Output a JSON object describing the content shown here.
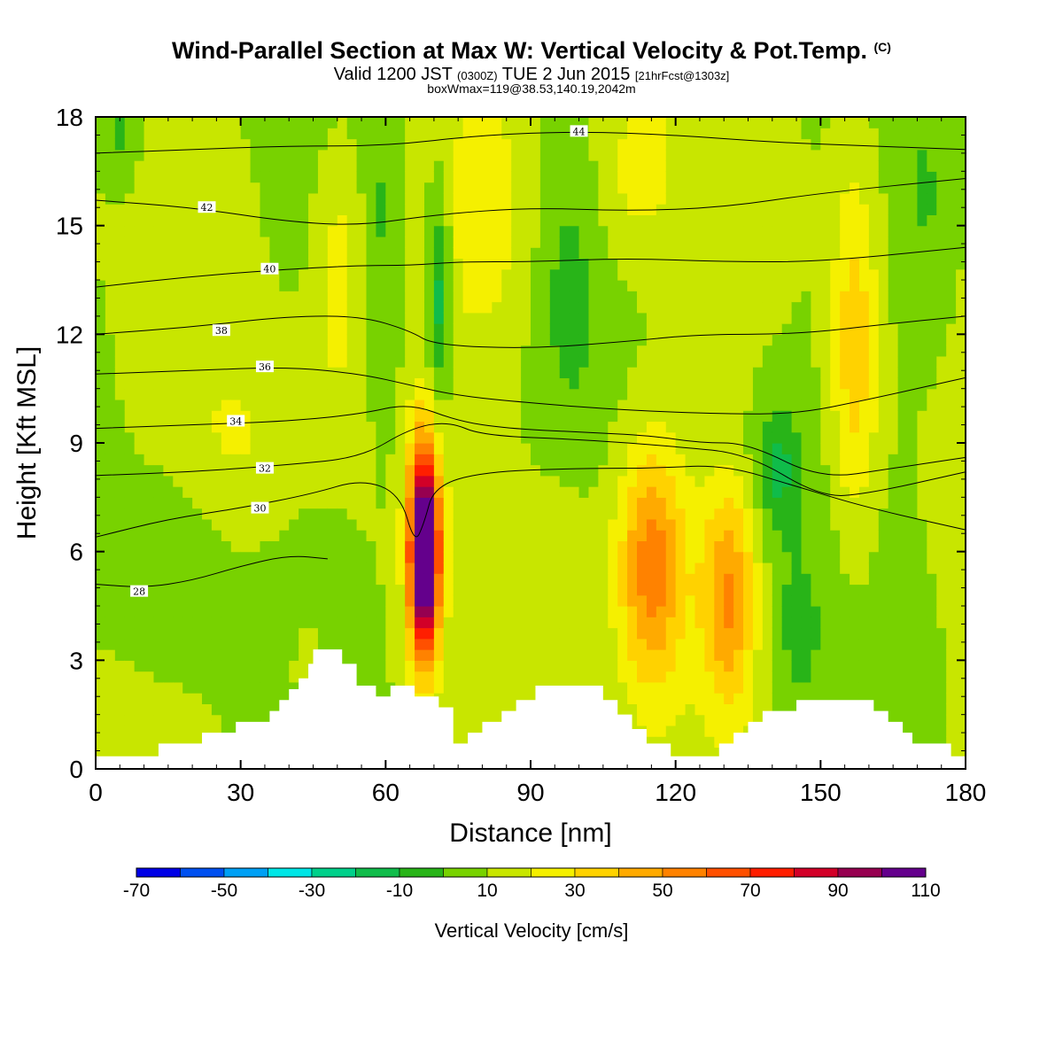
{
  "title": {
    "main": "Wind-Parallel Section at Max W: Vertical Velocity & Pot.Temp.",
    "main_mark": "(C)",
    "valid_prefix": "Valid 1200 JST",
    "valid_z": "(0300Z)",
    "valid_date": "TUE 2 Jun 2015",
    "valid_fcst": "[21hrFcst@1303z]",
    "box": "boxWmax=119@38.53,140.19,2042m"
  },
  "chart_data": {
    "type": "heatmap",
    "xlabel": "Distance [nm]",
    "ylabel": "Height [Kft MSL]",
    "xlim": [
      0,
      180
    ],
    "ylim": [
      0,
      18
    ],
    "xticks": [
      0,
      30,
      60,
      90,
      120,
      150,
      180
    ],
    "yticks": [
      0,
      3,
      6,
      9,
      12,
      15,
      18
    ],
    "colorbar": {
      "title": "Vertical Velocity [cm/s]",
      "labels": [
        "-70",
        "-50",
        "-30",
        "-10",
        "10",
        "30",
        "50",
        "70",
        "90",
        "110"
      ],
      "colors": [
        "#0000e6",
        "#0050f0",
        "#00a0f5",
        "#00e6e6",
        "#00d08a",
        "#10bc4a",
        "#28b418",
        "#78d200",
        "#c8e600",
        "#f5f000",
        "#ffd200",
        "#ffaa00",
        "#ff8200",
        "#ff5000",
        "#ff1e00",
        "#d20028",
        "#960050",
        "#64008c"
      ]
    },
    "terrain_kft": [
      [
        0,
        0.35
      ],
      [
        13,
        0.35
      ],
      [
        13,
        0.7
      ],
      [
        22,
        0.7
      ],
      [
        22,
        1.0
      ],
      [
        29,
        1.0
      ],
      [
        29,
        1.3
      ],
      [
        36,
        1.3
      ],
      [
        36,
        1.6
      ],
      [
        38,
        1.6
      ],
      [
        38,
        1.9
      ],
      [
        40,
        1.9
      ],
      [
        40,
        2.2
      ],
      [
        42,
        2.2
      ],
      [
        42,
        2.5
      ],
      [
        44,
        2.5
      ],
      [
        44,
        2.9
      ],
      [
        45,
        2.9
      ],
      [
        45,
        3.3
      ],
      [
        51,
        3.3
      ],
      [
        51,
        2.9
      ],
      [
        54,
        2.9
      ],
      [
        54,
        2.3
      ],
      [
        58,
        2.3
      ],
      [
        58,
        2.0
      ],
      [
        61,
        2.0
      ],
      [
        61,
        2.3
      ],
      [
        66,
        2.3
      ],
      [
        66,
        2.0
      ],
      [
        71,
        2.0
      ],
      [
        71,
        1.7
      ],
      [
        74,
        1.7
      ],
      [
        74,
        0.7
      ],
      [
        77,
        0.7
      ],
      [
        77,
        1.0
      ],
      [
        80,
        1.0
      ],
      [
        80,
        1.3
      ],
      [
        84,
        1.3
      ],
      [
        84,
        1.6
      ],
      [
        87,
        1.6
      ],
      [
        87,
        1.9
      ],
      [
        91,
        1.9
      ],
      [
        91,
        2.3
      ],
      [
        105,
        2.3
      ],
      [
        105,
        1.9
      ],
      [
        108,
        1.9
      ],
      [
        108,
        1.5
      ],
      [
        111,
        1.5
      ],
      [
        111,
        1.1
      ],
      [
        114,
        1.1
      ],
      [
        114,
        0.7
      ],
      [
        119,
        0.7
      ],
      [
        119,
        0.35
      ],
      [
        129,
        0.35
      ],
      [
        129,
        0.7
      ],
      [
        132,
        0.7
      ],
      [
        132,
        1.0
      ],
      [
        135,
        1.0
      ],
      [
        135,
        1.3
      ],
      [
        138,
        1.3
      ],
      [
        138,
        1.6
      ],
      [
        145,
        1.6
      ],
      [
        145,
        1.9
      ],
      [
        161,
        1.9
      ],
      [
        161,
        1.6
      ],
      [
        164,
        1.6
      ],
      [
        164,
        1.3
      ],
      [
        167,
        1.3
      ],
      [
        167,
        1.0
      ],
      [
        169,
        1.0
      ],
      [
        169,
        0.7
      ],
      [
        177,
        0.7
      ],
      [
        177,
        0.35
      ],
      [
        180,
        0.35
      ]
    ],
    "w_features": [
      {
        "x": 68,
        "y": 6.0,
        "sx": 2.2,
        "sy": 2.1,
        "value": 119
      },
      {
        "x": 115,
        "y": 5.6,
        "sx": 5.0,
        "sy": 2.4,
        "value": 45
      },
      {
        "x": 131,
        "y": 4.8,
        "sx": 4.0,
        "sy": 2.2,
        "value": 40
      },
      {
        "x": 157,
        "y": 11.5,
        "sx": 3.5,
        "sy": 3.5,
        "value": 28
      },
      {
        "x": 50,
        "y": 13.5,
        "sx": 3.0,
        "sy": 2.5,
        "value": 15
      },
      {
        "x": 81,
        "y": 15.5,
        "sx": 7.0,
        "sy": 2.5,
        "value": 18
      },
      {
        "x": 112,
        "y": 16.5,
        "sx": 6.0,
        "sy": 1.8,
        "value": 14
      },
      {
        "x": 44,
        "y": 2.6,
        "sx": 2.0,
        "sy": 0.9,
        "value": 16
      },
      {
        "x": 71,
        "y": 13.0,
        "sx": 1.8,
        "sy": 2.2,
        "value": -28
      },
      {
        "x": 141,
        "y": 8.3,
        "sx": 3.5,
        "sy": 1.2,
        "value": -22
      },
      {
        "x": 60,
        "y": 14.5,
        "sx": 2.5,
        "sy": 4.0,
        "value": -12
      },
      {
        "x": 98,
        "y": 13.0,
        "sx": 4.0,
        "sy": 2.5,
        "value": -10
      },
      {
        "x": 172,
        "y": 15.5,
        "sx": 5.0,
        "sy": 3.0,
        "value": -12
      },
      {
        "x": 15,
        "y": 5.5,
        "sx": 8.0,
        "sy": 2.0,
        "value": -10
      },
      {
        "x": 145,
        "y": 3.8,
        "sx": 4.0,
        "sy": 1.8,
        "value": -11
      },
      {
        "x": 5,
        "y": 17.5,
        "sx": 3.0,
        "sy": 1.0,
        "value": -15
      },
      {
        "x": 30,
        "y": 9.0,
        "sx": 10.0,
        "sy": 2.0,
        "value": 12
      },
      {
        "x": 96,
        "y": 5.0,
        "sx": 5.0,
        "sy": 2.0,
        "value": 9
      }
    ],
    "theta_contours": [
      {
        "label": "28",
        "pts": [
          [
            0,
            5.1
          ],
          [
            10,
            5.0
          ],
          [
            20,
            5.2
          ],
          [
            30,
            5.6
          ],
          [
            40,
            5.9
          ],
          [
            48,
            5.8
          ]
        ],
        "label_at": [
          9,
          4.9
        ]
      },
      {
        "label": "30",
        "pts": [
          [
            0,
            6.4
          ],
          [
            15,
            6.9
          ],
          [
            30,
            7.2
          ],
          [
            45,
            7.6
          ],
          [
            55,
            8.0
          ],
          [
            63,
            7.6
          ],
          [
            66,
            6.2
          ],
          [
            68,
            6.8
          ],
          [
            70,
            7.8
          ],
          [
            80,
            8.2
          ],
          [
            100,
            8.3
          ],
          [
            115,
            8.3
          ],
          [
            130,
            8.4
          ],
          [
            145,
            7.8
          ],
          [
            160,
            7.2
          ],
          [
            180,
            6.6
          ]
        ],
        "label_at": [
          34,
          7.2
        ]
      },
      {
        "label": "32",
        "pts": [
          [
            0,
            8.1
          ],
          [
            20,
            8.2
          ],
          [
            40,
            8.4
          ],
          [
            55,
            8.6
          ],
          [
            65,
            9.4
          ],
          [
            73,
            9.6
          ],
          [
            80,
            9.2
          ],
          [
            100,
            9.1
          ],
          [
            120,
            8.9
          ],
          [
            135,
            8.7
          ],
          [
            150,
            7.5
          ],
          [
            160,
            7.6
          ],
          [
            180,
            8.2
          ]
        ],
        "label_at": [
          35,
          8.3
        ]
      },
      {
        "label": "34",
        "pts": [
          [
            0,
            9.4
          ],
          [
            20,
            9.5
          ],
          [
            40,
            9.6
          ],
          [
            55,
            9.8
          ],
          [
            65,
            10.1
          ],
          [
            75,
            9.6
          ],
          [
            85,
            9.4
          ],
          [
            100,
            9.3
          ],
          [
            115,
            9.2
          ],
          [
            125,
            9.0
          ],
          [
            135,
            9.0
          ],
          [
            150,
            8.0
          ],
          [
            165,
            8.3
          ],
          [
            180,
            8.6
          ]
        ],
        "label_at": [
          29,
          9.6
        ]
      },
      {
        "label": "36",
        "pts": [
          [
            0,
            10.9
          ],
          [
            20,
            11.0
          ],
          [
            40,
            11.1
          ],
          [
            55,
            10.9
          ],
          [
            65,
            10.6
          ],
          [
            75,
            10.3
          ],
          [
            90,
            10.1
          ],
          [
            110,
            9.9
          ],
          [
            130,
            9.8
          ],
          [
            145,
            9.8
          ],
          [
            160,
            10.2
          ],
          [
            180,
            10.8
          ]
        ],
        "label_at": [
          35,
          11.1
        ]
      },
      {
        "label": "38",
        "pts": [
          [
            0,
            12.0
          ],
          [
            20,
            12.2
          ],
          [
            40,
            12.5
          ],
          [
            55,
            12.5
          ],
          [
            65,
            12.1
          ],
          [
            70,
            11.7
          ],
          [
            90,
            11.6
          ],
          [
            110,
            11.8
          ],
          [
            125,
            12.0
          ],
          [
            145,
            12.0
          ],
          [
            165,
            12.3
          ],
          [
            180,
            12.5
          ]
        ],
        "label_at": [
          26,
          12.1
        ]
      },
      {
        "label": "40",
        "pts": [
          [
            0,
            13.3
          ],
          [
            20,
            13.6
          ],
          [
            40,
            13.8
          ],
          [
            55,
            13.9
          ],
          [
            65,
            13.9
          ],
          [
            75,
            14.0
          ],
          [
            90,
            14.0
          ],
          [
            110,
            14.1
          ],
          [
            130,
            14.0
          ],
          [
            150,
            14.0
          ],
          [
            180,
            14.4
          ]
        ],
        "label_at": [
          36,
          13.8
        ]
      },
      {
        "label": "42",
        "pts": [
          [
            0,
            15.7
          ],
          [
            20,
            15.5
          ],
          [
            40,
            15.1
          ],
          [
            55,
            15.0
          ],
          [
            70,
            15.3
          ],
          [
            90,
            15.5
          ],
          [
            110,
            15.4
          ],
          [
            130,
            15.5
          ],
          [
            150,
            15.9
          ],
          [
            180,
            16.3
          ]
        ],
        "label_at": [
          23,
          15.5
        ]
      },
      {
        "label": "44",
        "pts": [
          [
            0,
            17.0
          ],
          [
            20,
            17.1
          ],
          [
            40,
            17.2
          ],
          [
            60,
            17.2
          ],
          [
            80,
            17.5
          ],
          [
            100,
            17.6
          ],
          [
            120,
            17.5
          ],
          [
            140,
            17.3
          ],
          [
            160,
            17.2
          ],
          [
            180,
            17.1
          ]
        ],
        "label_at": [
          100,
          17.6
        ]
      }
    ]
  }
}
